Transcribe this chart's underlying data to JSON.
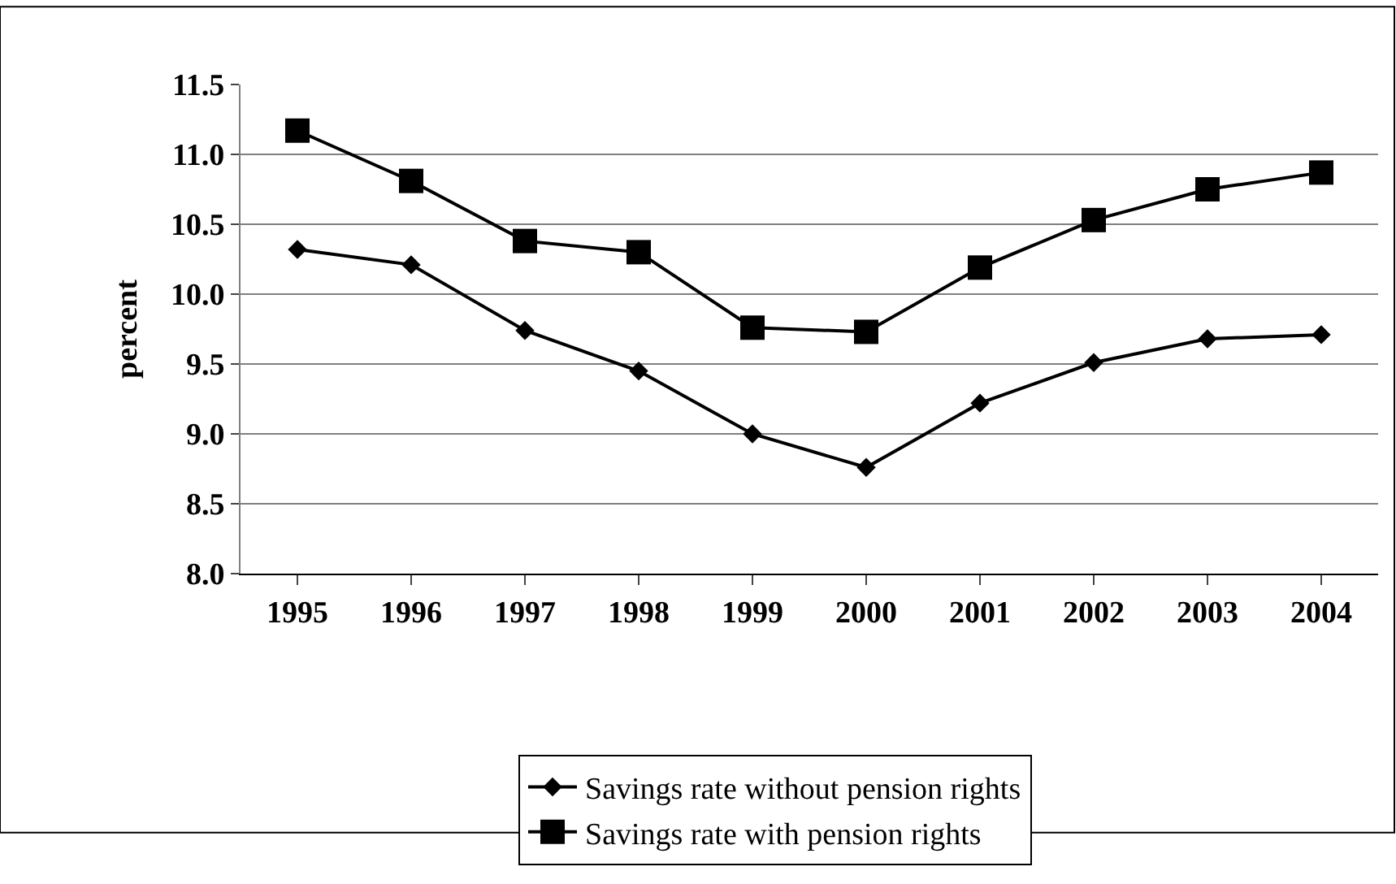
{
  "chart_data": {
    "type": "line",
    "ylabel": "percent",
    "categories": [
      "1995",
      "1996",
      "1997",
      "1998",
      "1999",
      "2000",
      "2001",
      "2002",
      "2003",
      "2004"
    ],
    "series": [
      {
        "name": "Savings rate without pension rights",
        "color": "#000000",
        "marker": "diamond",
        "values": [
          10.32,
          10.21,
          9.74,
          9.45,
          9.0,
          8.76,
          9.22,
          9.51,
          9.68,
          9.71
        ]
      },
      {
        "name": "Savings rate with pension rights",
        "color": "#000000",
        "marker": "square",
        "values": [
          11.17,
          10.81,
          10.38,
          10.3,
          9.76,
          9.73,
          10.19,
          10.53,
          10.75,
          10.87
        ]
      }
    ],
    "ylim": [
      8.0,
      11.5
    ],
    "yticks": [
      {
        "value": 8.0,
        "label": "8.0"
      },
      {
        "value": 8.5,
        "label": "8.5"
      },
      {
        "value": 9.0,
        "label": "9.0"
      },
      {
        "value": 9.5,
        "label": "9.5"
      },
      {
        "value": 10.0,
        "label": "10.0"
      },
      {
        "value": 10.5,
        "label": "10.5"
      },
      {
        "value": 11.0,
        "label": "11.0"
      },
      {
        "value": 11.5,
        "label": "11.5"
      }
    ],
    "grid": "y",
    "legend": "bottom",
    "line_style": "solid"
  }
}
